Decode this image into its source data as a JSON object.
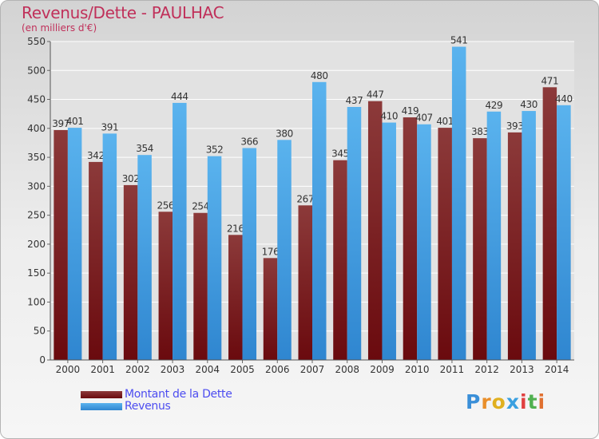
{
  "title": "Revenus/Dette - PAULHAC",
  "subtitle": "(en milliers d'€)",
  "logo": {
    "text": "Proxiti",
    "letters": [
      {
        "ch": "P",
        "color": "#3a8fd8"
      },
      {
        "ch": "r",
        "color": "#e98f2b"
      },
      {
        "ch": "o",
        "color": "#e0b020"
      },
      {
        "ch": "x",
        "color": "#3aa0e0"
      },
      {
        "ch": "i",
        "color": "#e04040"
      },
      {
        "ch": "t",
        "color": "#50b050"
      },
      {
        "ch": "i",
        "color": "#e07030"
      }
    ]
  },
  "colors": {
    "dette": "#6a0a0e",
    "dette_top": "#8c3a3a",
    "revenus": "#2f86d0",
    "revenus_top": "#5ab3ee",
    "axis_text": "#333333",
    "grid": "#ffffff"
  },
  "chart_data": {
    "type": "bar",
    "title": "Revenus/Dette - PAULHAC",
    "subtitle": "(en milliers d'€)",
    "categories": [
      "2000",
      "2001",
      "2002",
      "2003",
      "2004",
      "2005",
      "2006",
      "2007",
      "2008",
      "2009",
      "2010",
      "2011",
      "2012",
      "2013",
      "2014"
    ],
    "series": [
      {
        "name": "Montant de la Dette",
        "values": [
          397,
          342,
          302,
          256,
          254,
          216,
          176,
          267,
          345,
          447,
          419,
          401,
          383,
          393,
          471
        ]
      },
      {
        "name": "Revenus",
        "values": [
          401,
          391,
          354,
          444,
          352,
          366,
          380,
          480,
          437,
          410,
          407,
          541,
          429,
          430,
          440
        ]
      }
    ],
    "ylim": [
      0,
      550
    ],
    "yticks": [
      0,
      50,
      100,
      150,
      200,
      250,
      300,
      350,
      400,
      450,
      500,
      550
    ],
    "grid": true,
    "legend_position": "bottom-left"
  }
}
